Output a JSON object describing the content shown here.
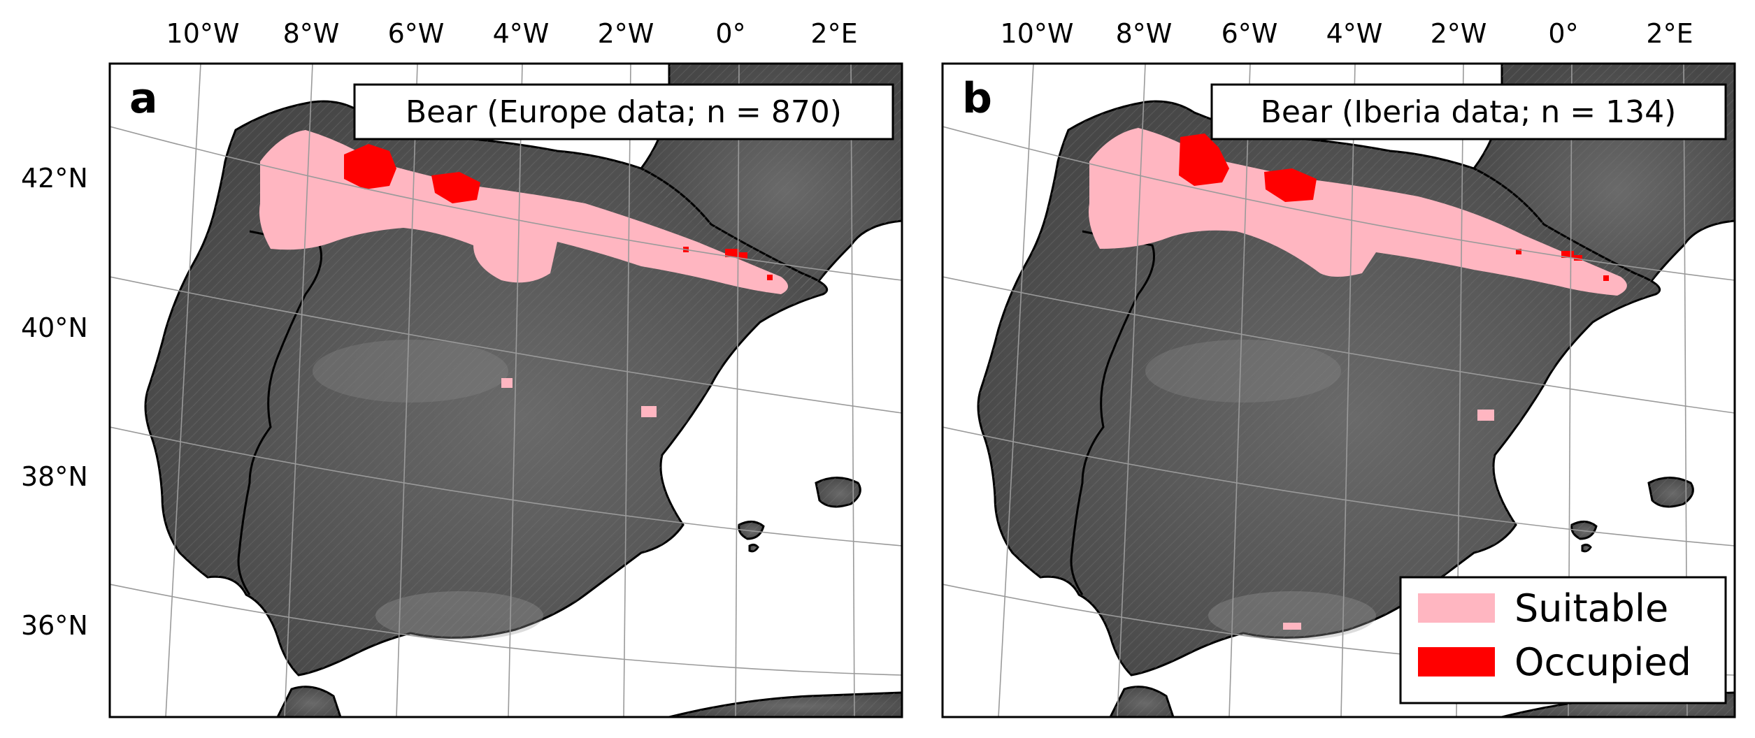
{
  "legend": {
    "suitable_label": "Suitable",
    "occupied_label": "Occupied",
    "suitable_color": "#ffb6c1",
    "occupied_color": "#ff0000"
  },
  "colors": {
    "land": "#4d4d4d",
    "sea": "#ffffff",
    "border": "#000000",
    "graticule": "#9a9a9a"
  },
  "axes": {
    "lon_ticks": [
      "10°W",
      "8°W",
      "6°W",
      "4°W",
      "2°W",
      "0°",
      "2°E"
    ],
    "lat_ticks": [
      "42°N",
      "40°N",
      "38°N",
      "36°N"
    ]
  },
  "panels": [
    {
      "letter": "a",
      "title": "Bear (Europe data; n = 870)"
    },
    {
      "letter": "b",
      "title": "Bear (Iberia data; n = 134)"
    }
  ]
}
